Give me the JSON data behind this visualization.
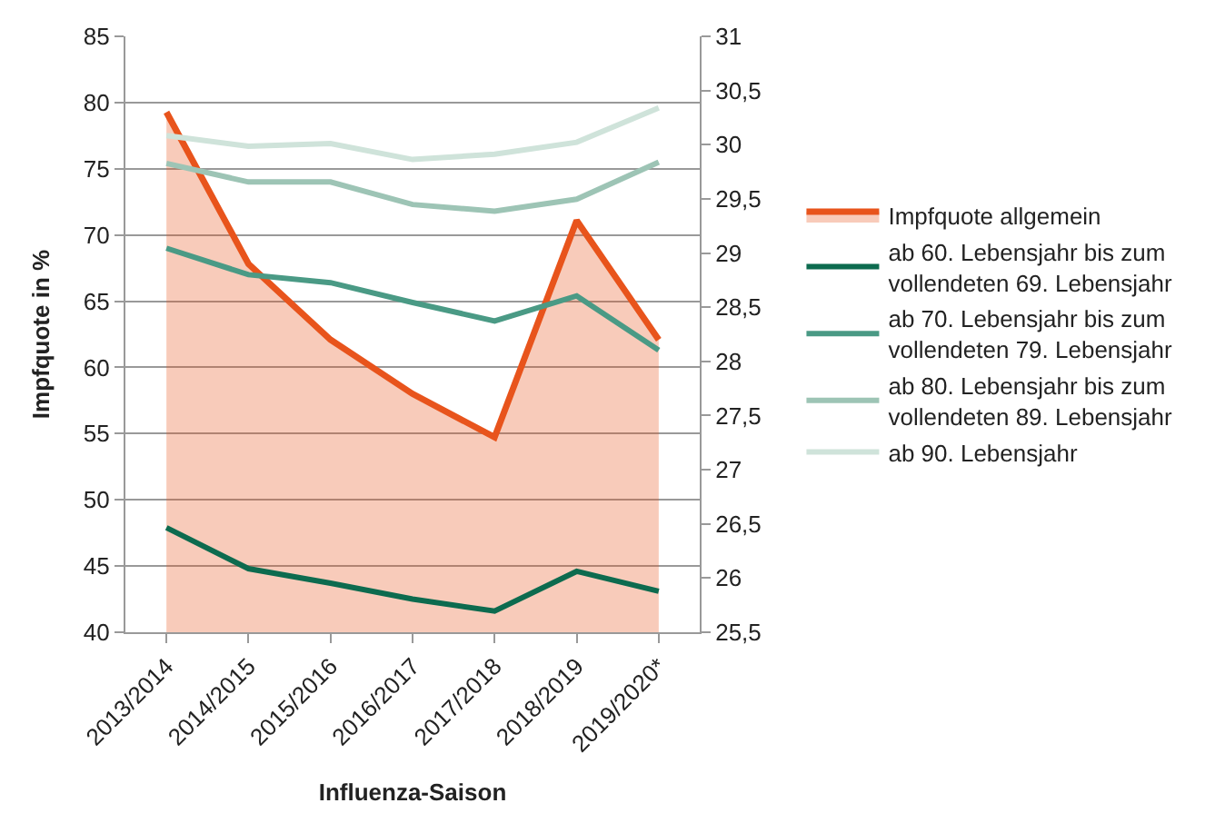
{
  "chart_data": {
    "type": "line",
    "xlabel": "Influenza-Saison",
    "ylabel": "Impfquote in %",
    "categories": [
      "2013/2014",
      "2014/2015",
      "2015/2016",
      "2016/2017",
      "2017/2018",
      "2018/2019",
      "2019/2020*"
    ],
    "series": [
      {
        "name": "Impfquote allgemein",
        "type": "area",
        "axis": "y2",
        "color": "#e8541c",
        "values": [
          30.3,
          28.9,
          28.2,
          27.7,
          27.3,
          29.3,
          28.2
        ]
      },
      {
        "name": "ab 60. Lebensjahr bis zum vollendeten 69. Lebensjahr",
        "color": "#0d6b4f",
        "values": [
          47.9,
          44.8,
          43.7,
          42.5,
          41.6,
          44.6,
          43.1
        ]
      },
      {
        "name": "ab 70. Lebensjahr bis zum vollendeten 79. Lebensjahr",
        "color": "#4a9a85",
        "values": [
          69.0,
          67.0,
          66.4,
          64.9,
          63.5,
          65.4,
          61.3
        ]
      },
      {
        "name": "ab 80. Lebensjahr bis zum vollendeten 89. Lebensjahr",
        "color": "#9dc4b5",
        "values": [
          75.4,
          74.0,
          74.0,
          72.3,
          71.8,
          72.7,
          75.5
        ]
      },
      {
        "name": "ab 90. Lebensjahr",
        "color": "#cfe3da",
        "values": [
          77.5,
          76.7,
          76.9,
          75.7,
          76.1,
          77.0,
          79.6
        ]
      }
    ],
    "ylim": [
      40,
      85
    ],
    "yticks": [
      40,
      45,
      50,
      55,
      60,
      65,
      70,
      75,
      80,
      85
    ],
    "y2lim": [
      25.5,
      31
    ],
    "y2ticks": [
      {
        "value": 25.5,
        "label": "25,5"
      },
      26,
      {
        "value": 26.5,
        "label": "26,5"
      },
      27,
      {
        "value": 27.5,
        "label": "27,5"
      },
      28,
      {
        "value": 28.5,
        "label": "28,5"
      },
      29,
      {
        "value": 29.5,
        "label": "29,5"
      },
      30,
      {
        "value": 30.5,
        "label": "30,5"
      },
      31
    ],
    "grid": "y",
    "legend": "right",
    "marker": "none",
    "line_style": "solid"
  }
}
